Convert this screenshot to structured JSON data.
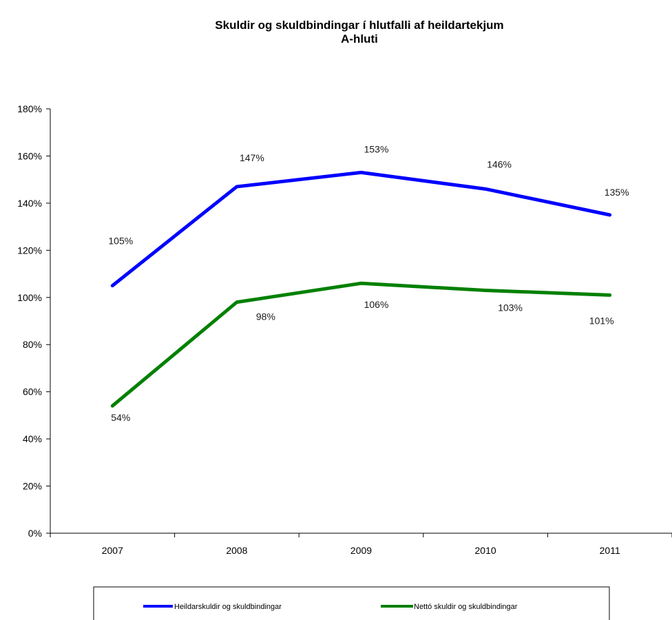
{
  "chart_data": {
    "type": "line",
    "title": "Skuldir og skuldbindingar í hlutfalli af heildartekjum",
    "subtitle": "A-hluti",
    "xlabel": "",
    "ylabel": "",
    "categories": [
      "2007",
      "2008",
      "2009",
      "2010",
      "2011"
    ],
    "ylim": [
      0,
      180
    ],
    "yticks": [
      0,
      20,
      40,
      60,
      80,
      100,
      120,
      140,
      160,
      180
    ],
    "ytick_labels": [
      "0%",
      "20%",
      "40%",
      "60%",
      "80%",
      "100%",
      "120%",
      "140%",
      "160%",
      "180%"
    ],
    "grid": false,
    "legend_position": "bottom",
    "series": [
      {
        "name": "Heildarskuldir og skuldbindingar",
        "color": "#0000ff",
        "values": [
          105,
          147,
          153,
          146,
          135
        ],
        "labels": [
          "105%",
          "147%",
          "153%",
          "146%",
          "135%"
        ]
      },
      {
        "name": "Nettó skuldir og skuldbindingar",
        "color": "#008000",
        "values": [
          54,
          98,
          106,
          103,
          101
        ],
        "labels": [
          "54%",
          "98%",
          "106%",
          "103%",
          "101%"
        ]
      }
    ]
  }
}
